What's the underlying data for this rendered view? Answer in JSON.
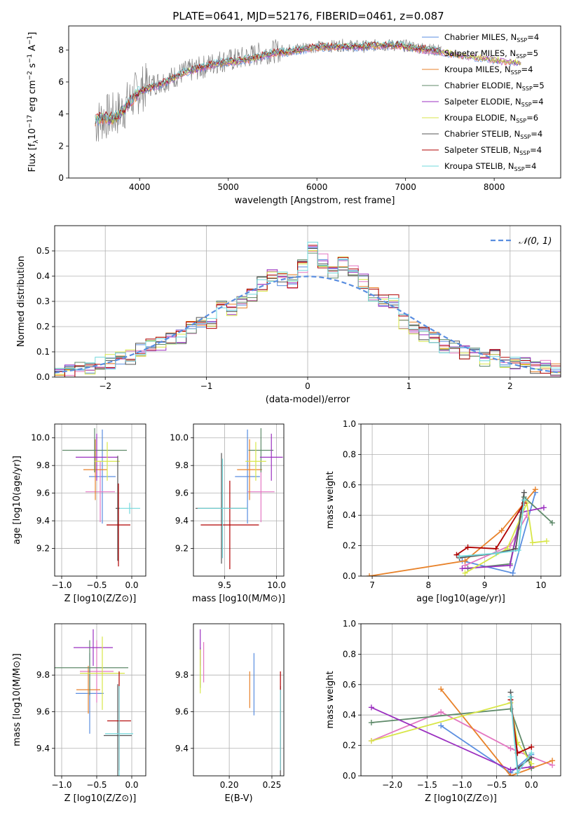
{
  "figure_title": "PLATE=0641, MJD=52176, FIBERID=0461, z=0.087",
  "colors": {
    "Chabrier MILES": "#5a8ee0",
    "Salpeter MILES": "#e377c2",
    "Kroupa MILES": "#e8822a",
    "Chabrier ELODIE": "#5f8a6a",
    "Salpeter ELODIE": "#9b30c0",
    "Kroupa ELODIE": "#d8e648",
    "Chabrier STELIB": "#555555",
    "Salpeter STELIB": "#b00000",
    "Kroupa STELIB": "#72d8dc"
  },
  "chart_data": [
    {
      "type": "line",
      "title": "PLATE=0641, MJD=52176, FIBERID=0461, z=0.087",
      "xlabel": "wavelength [Angstrom, rest frame]",
      "ylabel": "Flux [f_λ 10^-17 erg cm^-2 s^-1 A^-1]",
      "xlim": [
        3200,
        8750
      ],
      "ylim": [
        0,
        9.5
      ],
      "x_ticks": [
        4000,
        5000,
        6000,
        7000,
        8000
      ],
      "y_ticks": [
        0,
        2,
        4,
        6,
        8
      ],
      "legend_position": "top-right",
      "legend": [
        {
          "name": "Chabrier MILES",
          "nssp": "4"
        },
        {
          "name": "Salpeter MILES",
          "nssp": "5"
        },
        {
          "name": "Kroupa MILES",
          "nssp": "4"
        },
        {
          "name": "Chabrier ELODIE",
          "nssp": "5"
        },
        {
          "name": "Salpeter ELODIE",
          "nssp": "4"
        },
        {
          "name": "Kroupa ELODIE",
          "nssp": "6"
        },
        {
          "name": "Chabrier STELIB",
          "nssp": "4"
        },
        {
          "name": "Salpeter STELIB",
          "nssp": "4"
        },
        {
          "name": "Kroupa STELIB",
          "nssp": "4"
        }
      ],
      "data_envelope": {
        "x": [
          3500,
          3600,
          3700,
          3800,
          3900,
          4000,
          4100,
          4300,
          4500,
          4700,
          4900,
          5100,
          5300,
          5500,
          5700,
          5900,
          6100,
          6300,
          6500,
          6700,
          6900,
          7100,
          7300,
          7400
        ],
        "y": [
          3.4,
          3.8,
          3.9,
          4.2,
          4.9,
          5.5,
          5.8,
          6.1,
          6.6,
          6.9,
          7.3,
          7.4,
          7.7,
          7.9,
          8.0,
          8.2,
          8.2,
          8.3,
          8.2,
          8.3,
          8.3,
          8.2,
          8.0,
          8.0
        ]
      },
      "model_envelope": {
        "x": [
          3500,
          3600,
          3700,
          3800,
          3900,
          4000,
          4100,
          4300,
          4500,
          4700,
          4900,
          5100,
          5300,
          5500,
          5700,
          5900,
          6100,
          6300,
          6500,
          6700,
          6900,
          7100,
          7300,
          7500,
          7700,
          7900,
          8100,
          8300
        ],
        "y": [
          3.6,
          3.8,
          3.7,
          4.1,
          4.8,
          5.4,
          5.6,
          6.0,
          6.6,
          6.9,
          7.2,
          7.3,
          7.5,
          7.8,
          7.9,
          8.1,
          8.2,
          8.2,
          8.2,
          8.3,
          8.3,
          8.1,
          8.0,
          7.8,
          7.6,
          7.5,
          7.3,
          7.2
        ]
      }
    },
    {
      "type": "bar",
      "xlabel": "(data-model)/error",
      "ylabel": "Normed distribution",
      "xlim": [
        -2.5,
        2.5
      ],
      "ylim": [
        0,
        0.6
      ],
      "x_ticks": [
        -2,
        -1,
        0,
        1,
        2
      ],
      "y_ticks": [
        0.0,
        0.1,
        0.2,
        0.3,
        0.4,
        0.5
      ],
      "legend_position": "top-right",
      "reference_curve": "N(0,1)",
      "bin_edges": [
        -2.5,
        -2.4,
        -2.3,
        -2.2,
        -2.1,
        -2.0,
        -1.9,
        -1.8,
        -1.7,
        -1.6,
        -1.5,
        -1.4,
        -1.3,
        -1.2,
        -1.1,
        -1.0,
        -0.9,
        -0.8,
        -0.7,
        -0.6,
        -0.5,
        -0.4,
        -0.3,
        -0.2,
        -0.1,
        0.0,
        0.1,
        0.2,
        0.3,
        0.4,
        0.5,
        0.6,
        0.7,
        0.8,
        0.9,
        1.0,
        1.1,
        1.2,
        1.3,
        1.4,
        1.5,
        1.6,
        1.7,
        1.8,
        1.9,
        2.0,
        2.1,
        2.2,
        2.3,
        2.4,
        2.5
      ],
      "values": [
        0.015,
        0.02,
        0.04,
        0.04,
        0.05,
        0.06,
        0.07,
        0.08,
        0.11,
        0.13,
        0.13,
        0.15,
        0.16,
        0.2,
        0.21,
        0.22,
        0.3,
        0.26,
        0.3,
        0.33,
        0.37,
        0.4,
        0.39,
        0.38,
        0.44,
        0.51,
        0.46,
        0.42,
        0.45,
        0.43,
        0.38,
        0.33,
        0.31,
        0.3,
        0.22,
        0.2,
        0.17,
        0.16,
        0.12,
        0.12,
        0.1,
        0.09,
        0.07,
        0.08,
        0.06,
        0.05,
        0.05,
        0.04,
        0.04,
        0.03
      ]
    },
    {
      "type": "scatter",
      "panel": "age-vs-Z",
      "xlabel": "Z [log10(Z/Z⊙)]",
      "ylabel": "age [log10(age/yr)]",
      "xlim": [
        -1.1,
        0.2
      ],
      "ylim": [
        9.0,
        10.1
      ],
      "x_ticks": [
        -1.0,
        -0.5,
        0.0
      ],
      "y_ticks": [
        9.2,
        9.4,
        9.6,
        9.8,
        10.0
      ],
      "points": [
        {
          "model": "Chabrier MILES",
          "x": -0.42,
          "y": 9.72,
          "xerr": 0.19,
          "yerr": 0.34
        },
        {
          "model": "Salpeter MILES",
          "x": -0.45,
          "y": 9.61,
          "xerr": 0.21,
          "yerr": 0.22
        },
        {
          "model": "Kroupa MILES",
          "x": -0.52,
          "y": 9.77,
          "xerr": 0.17,
          "yerr": 0.22
        },
        {
          "model": "Chabrier ELODIE",
          "x": -0.53,
          "y": 9.91,
          "xerr": 0.46,
          "yerr": 0.16
        },
        {
          "model": "Salpeter ELODIE",
          "x": -0.5,
          "y": 9.86,
          "xerr": 0.3,
          "yerr": 0.17
        },
        {
          "model": "Kroupa ELODIE",
          "x": -0.35,
          "y": 9.83,
          "xerr": 0.18,
          "yerr": 0.14
        },
        {
          "model": "Chabrier STELIB",
          "x": -0.2,
          "y": 9.49,
          "xerr": 0.03,
          "yerr": 0.38
        },
        {
          "model": "Salpeter STELIB",
          "x": -0.19,
          "y": 9.37,
          "xerr": 0.17,
          "yerr": 0.3
        },
        {
          "model": "Kroupa STELIB",
          "x": -0.03,
          "y": 9.49,
          "xerr": 0.15,
          "yerr": 0.04
        }
      ]
    },
    {
      "type": "scatter",
      "panel": "age-vs-mass",
      "xlabel": "mass [log10(M/M⊙)]",
      "ylabel": "",
      "xlim": [
        9.2,
        10.07
      ],
      "ylim": [
        9.0,
        10.1
      ],
      "x_ticks": [
        9.5,
        10.0
      ],
      "y_ticks": [
        9.2,
        9.4,
        9.6,
        9.8,
        10.0
      ],
      "points": [
        {
          "model": "Chabrier MILES",
          "x": 9.72,
          "y": 9.72,
          "xerr": 0.12,
          "yerr": 0.34
        },
        {
          "model": "Salpeter MILES",
          "x": 9.85,
          "y": 9.61,
          "xerr": 0.13,
          "yerr": 0.22
        },
        {
          "model": "Kroupa MILES",
          "x": 9.74,
          "y": 9.77,
          "xerr": 0.12,
          "yerr": 0.22
        },
        {
          "model": "Chabrier ELODIE",
          "x": 9.85,
          "y": 9.91,
          "xerr": 0.12,
          "yerr": 0.16
        },
        {
          "model": "Salpeter ELODIE",
          "x": 9.95,
          "y": 9.86,
          "xerr": 0.11,
          "yerr": 0.17
        },
        {
          "model": "Kroupa ELODIE",
          "x": 9.8,
          "y": 9.83,
          "xerr": 0.1,
          "yerr": 0.14
        },
        {
          "model": "Chabrier STELIB",
          "x": 9.47,
          "y": 9.49,
          "xerr": 0.25,
          "yerr": 0.4
        },
        {
          "model": "Salpeter STELIB",
          "x": 9.55,
          "y": 9.37,
          "xerr": 0.28,
          "yerr": 0.32
        },
        {
          "model": "Kroupa STELIB",
          "x": 9.48,
          "y": 9.49,
          "xerr": 0.24,
          "yerr": 0.36
        }
      ]
    },
    {
      "type": "line",
      "panel": "weight-vs-age",
      "xlabel": "age [log10(age/yr)]",
      "ylabel": "mass weight",
      "xlim": [
        6.8,
        10.35
      ],
      "ylim": [
        0,
        1.0
      ],
      "x_ticks": [
        7,
        8,
        9,
        10
      ],
      "y_ticks": [
        0.0,
        0.2,
        0.4,
        0.6,
        0.8,
        1.0
      ],
      "series": [
        {
          "model": "Chabrier MILES",
          "x": [
            8.6,
            9.5,
            9.9
          ],
          "y": [
            0.1,
            0.02,
            0.55
          ]
        },
        {
          "model": "Salpeter MILES",
          "x": [
            8.65,
            9.45,
            9.75
          ],
          "y": [
            0.07,
            0.2,
            0.4
          ]
        },
        {
          "model": "Kroupa MILES",
          "x": [
            6.95,
            8.65,
            9.3,
            9.9
          ],
          "y": [
            0.0,
            0.1,
            0.3,
            0.57
          ]
        },
        {
          "model": "Chabrier ELODIE",
          "x": [
            8.7,
            9.45,
            9.7,
            10.2
          ],
          "y": [
            0.05,
            0.08,
            0.52,
            0.35
          ]
        },
        {
          "model": "Salpeter ELODIE",
          "x": [
            8.6,
            9.45,
            9.65,
            10.05
          ],
          "y": [
            0.05,
            0.07,
            0.42,
            0.45
          ]
        },
        {
          "model": "Kroupa ELODIE",
          "x": [
            8.65,
            9.4,
            9.75,
            9.85,
            10.1
          ],
          "y": [
            0.02,
            0.18,
            0.48,
            0.22,
            0.23
          ]
        },
        {
          "model": "Chabrier STELIB",
          "x": [
            8.55,
            9.2,
            9.55,
            9.7
          ],
          "y": [
            0.12,
            0.15,
            0.18,
            0.55
          ]
        },
        {
          "model": "Salpeter STELIB",
          "x": [
            8.5,
            8.7,
            9.2,
            9.7
          ],
          "y": [
            0.14,
            0.19,
            0.18,
            0.48
          ]
        },
        {
          "model": "Kroupa STELIB",
          "x": [
            8.55,
            9.2,
            9.6,
            9.7
          ],
          "y": [
            0.13,
            0.15,
            0.17,
            0.5
          ]
        }
      ]
    },
    {
      "type": "scatter",
      "panel": "mass-vs-Z",
      "xlabel": "Z [log10(Z/Z⊙)]",
      "ylabel": "mass [log10(M/M⊙)]",
      "xlim": [
        -1.1,
        0.2
      ],
      "ylim": [
        9.25,
        10.08
      ],
      "x_ticks": [
        -1.0,
        -0.5,
        0.0
      ],
      "y_ticks": [
        9.4,
        9.6,
        9.8
      ],
      "points": [
        {
          "model": "Chabrier MILES",
          "x": -0.6,
          "y": 9.7,
          "xerr": 0.2,
          "yerr": 0.22
        },
        {
          "model": "Salpeter MILES",
          "x": -0.5,
          "y": 9.82,
          "xerr": 0.24,
          "yerr": 0.17
        },
        {
          "model": "Kroupa MILES",
          "x": -0.62,
          "y": 9.72,
          "xerr": 0.17,
          "yerr": 0.13
        },
        {
          "model": "Chabrier ELODIE",
          "x": -0.6,
          "y": 9.84,
          "xerr": 0.55,
          "yerr": 0.15
        },
        {
          "model": "Salpeter ELODIE",
          "x": -0.55,
          "y": 9.95,
          "xerr": 0.28,
          "yerr": 0.1
        },
        {
          "model": "Kroupa ELODIE",
          "x": -0.42,
          "y": 9.81,
          "xerr": 0.32,
          "yerr": 0.2
        },
        {
          "model": "Chabrier STELIB",
          "x": -0.2,
          "y": 9.47,
          "xerr": 0.2,
          "yerr": 0.28
        },
        {
          "model": "Salpeter STELIB",
          "x": -0.18,
          "y": 9.55,
          "xerr": 0.17,
          "yerr": 0.27
        },
        {
          "model": "Kroupa STELIB",
          "x": -0.18,
          "y": 9.48,
          "xerr": 0.2,
          "yerr": 0.26
        }
      ]
    },
    {
      "type": "scatter",
      "panel": "mass-vs-ebv",
      "xlabel": "E(B-V)",
      "ylabel": "",
      "xlim": [
        0.158,
        0.264
      ],
      "ylim": [
        9.25,
        10.08
      ],
      "x_ticks": [
        0.2,
        0.25
      ],
      "y_ticks": [
        9.4,
        9.6,
        9.8
      ],
      "points": [
        {
          "model": "Chabrier MILES",
          "x": 0.229,
          "y": 9.75,
          "xerr": 0.0,
          "yerr": 0.17
        },
        {
          "model": "Salpeter MILES",
          "x": 0.17,
          "y": 9.87,
          "xerr": 0.0,
          "yerr": 0.11
        },
        {
          "model": "Kroupa MILES",
          "x": 0.224,
          "y": 9.72,
          "xerr": 0.0,
          "yerr": 0.1
        },
        {
          "model": "Chabrier ELODIE",
          "x": 0.166,
          "y": 9.84,
          "xerr": 0.0,
          "yerr": 0.11
        },
        {
          "model": "Salpeter ELODIE",
          "x": 0.166,
          "y": 9.95,
          "xerr": 0.0,
          "yerr": 0.1
        },
        {
          "model": "Kroupa ELODIE",
          "x": 0.166,
          "y": 9.82,
          "xerr": 0.0,
          "yerr": 0.12
        },
        {
          "model": "Chabrier STELIB",
          "x": 0.26,
          "y": 9.47,
          "xerr": 0.0,
          "yerr": 0.27
        },
        {
          "model": "Salpeter STELIB",
          "x": 0.26,
          "y": 9.55,
          "xerr": 0.0,
          "yerr": 0.27
        },
        {
          "model": "Kroupa STELIB",
          "x": 0.26,
          "y": 9.5,
          "xerr": 0.0,
          "yerr": 0.22
        }
      ]
    },
    {
      "type": "line",
      "panel": "weight-vs-Z",
      "xlabel": "Z [log10(Z/Z⊙)]",
      "ylabel": "mass weight",
      "xlim": [
        -2.45,
        0.42
      ],
      "ylim": [
        0,
        1.0
      ],
      "x_ticks": [
        -2.0,
        -1.5,
        -1.0,
        -0.5,
        0.0
      ],
      "y_ticks": [
        0.0,
        0.2,
        0.4,
        0.6,
        0.8,
        1.0
      ],
      "series": [
        {
          "model": "Chabrier MILES",
          "x": [
            -1.3,
            -0.3,
            0.0
          ],
          "y": [
            0.33,
            0.02,
            0.14
          ]
        },
        {
          "model": "Salpeter MILES",
          "x": [
            -2.3,
            -1.3,
            -0.3,
            0.3
          ],
          "y": [
            0.23,
            0.42,
            0.18,
            0.07
          ]
        },
        {
          "model": "Kroupa MILES",
          "x": [
            -1.3,
            -0.3,
            0.3
          ],
          "y": [
            0.57,
            0.0,
            0.1
          ]
        },
        {
          "model": "Chabrier ELODIE",
          "x": [
            -2.3,
            -0.3,
            0.0
          ],
          "y": [
            0.35,
            0.44,
            0.05
          ]
        },
        {
          "model": "Salpeter ELODIE",
          "x": [
            -2.3,
            -0.3,
            0.0
          ],
          "y": [
            0.45,
            0.04,
            0.06
          ]
        },
        {
          "model": "Kroupa ELODIE",
          "x": [
            -2.3,
            -0.3,
            -0.2,
            0.0
          ],
          "y": [
            0.23,
            0.48,
            0.22,
            0.08
          ]
        },
        {
          "model": "Chabrier STELIB",
          "x": [
            -0.3,
            -0.2,
            0.0
          ],
          "y": [
            0.55,
            0.05,
            0.12
          ]
        },
        {
          "model": "Salpeter STELIB",
          "x": [
            -0.3,
            -0.2,
            0.0
          ],
          "y": [
            0.5,
            0.15,
            0.19
          ]
        },
        {
          "model": "Kroupa STELIB",
          "x": [
            -0.3,
            -0.2,
            0.0
          ],
          "y": [
            0.52,
            0.02,
            0.15
          ]
        }
      ]
    }
  ]
}
